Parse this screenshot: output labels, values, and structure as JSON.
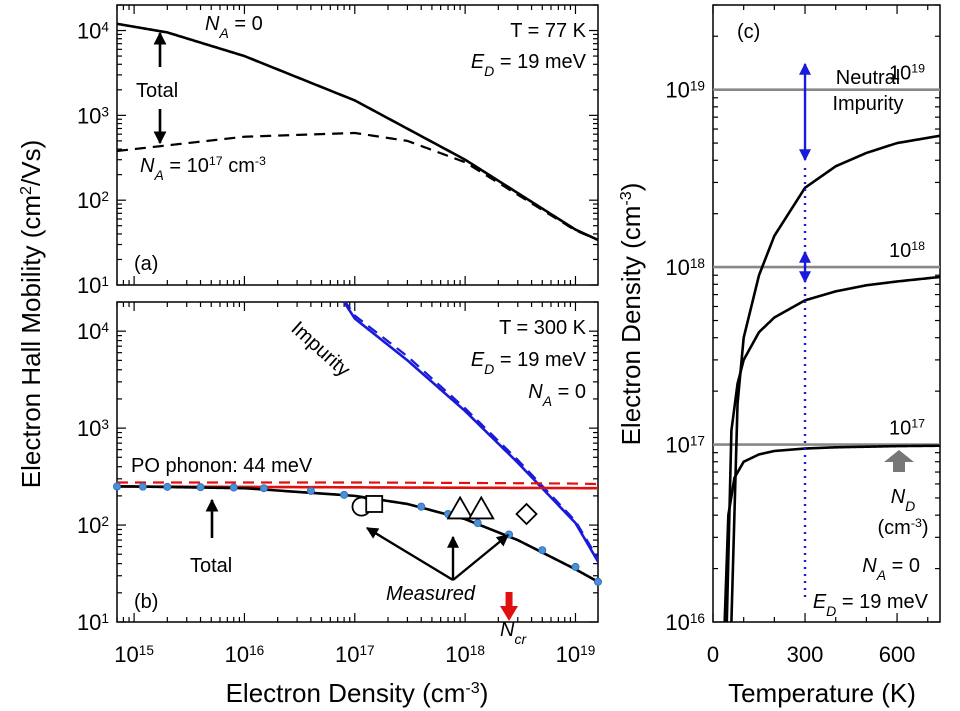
{
  "chart_data": [
    {
      "panel": "(a)",
      "type": "line",
      "title": "",
      "xlabel": "Electron Density (cm-3)",
      "ylabel": "Electron Hall Mobility (cm2/Vs)",
      "xscale": "log",
      "yscale": "log",
      "xlim": [
        700000000000000.0,
        1.6e+19
      ],
      "ylim": [
        10,
        20000
      ],
      "ytick_labels": [
        {
          "base": "10",
          "exp": "1",
          "value": 10
        },
        {
          "base": "10",
          "exp": "2",
          "value": 100
        },
        {
          "base": "10",
          "exp": "3",
          "value": 1000
        },
        {
          "base": "10",
          "exp": "4",
          "value": 10000
        }
      ],
      "annotations": {
        "temp": "T = 77 K",
        "ed_pre": "E",
        "ed_sub": "D",
        "ed_post": " = 19 meV",
        "panel": "(a)",
        "total": "Total"
      },
      "series": [
        {
          "name": "N_A = 0",
          "label_pre": "N",
          "label_sub": "A",
          "label_post": " = 0",
          "style": "solid",
          "color": "#000000",
          "x": [
            700000000000000.0,
            2000000000000000.0,
            1e+16,
            1e+17,
            1e+18,
            1e+19,
            1.6e+19
          ],
          "y": [
            12000,
            9500,
            5000,
            1500,
            300,
            45,
            34
          ]
        },
        {
          "name": "N_A = 10^17 cm^-3",
          "label_pre": "N",
          "label_sub": "A",
          "label_mid": " = 10",
          "label_sup": "17",
          "label_post": " cm",
          "label_sup2": "-3",
          "style": "dashed",
          "color": "#000000",
          "x": [
            700000000000000.0,
            1000000000000000.0,
            1e+16,
            1e+17,
            3e+17,
            1e+18,
            1e+19,
            1.6e+19
          ],
          "y": [
            380,
            400,
            560,
            620,
            500,
            280,
            44,
            34
          ]
        }
      ]
    },
    {
      "panel": "(b)",
      "type": "line",
      "title": "",
      "xlabel": "Electron Density (cm-3)",
      "ylabel": "Electron Hall Mobility (cm2/Vs)",
      "xscale": "log",
      "yscale": "log",
      "xlim": [
        700000000000000.0,
        1.6e+19
      ],
      "ylim": [
        10,
        20000
      ],
      "xtick_labels": [
        {
          "base": "10",
          "exp": "15",
          "value": 1000000000000000.0
        },
        {
          "base": "10",
          "exp": "16",
          "value": 1e+16
        },
        {
          "base": "10",
          "exp": "17",
          "value": 1e+17
        },
        {
          "base": "10",
          "exp": "18",
          "value": 1e+18
        },
        {
          "base": "10",
          "exp": "19",
          "value": 1e+19
        }
      ],
      "ytick_labels": [
        {
          "base": "10",
          "exp": "1",
          "value": 10
        },
        {
          "base": "10",
          "exp": "2",
          "value": 100
        },
        {
          "base": "10",
          "exp": "3",
          "value": 1000
        },
        {
          "base": "10",
          "exp": "4",
          "value": 10000
        }
      ],
      "annotations": {
        "temp": "T = 300 K",
        "ed_pre": "E",
        "ed_sub": "D",
        "ed_post": " = 19 meV",
        "na_pre": "N",
        "na_sub": "A",
        "na_post": " = 0",
        "panel": "(b)",
        "total": "Total",
        "measured": "Measured",
        "ncr_pre": "N",
        "ncr_sub": "cr",
        "ncr_x": 2.5e+18
      },
      "series": [
        {
          "name": "Impurity",
          "style": "solid",
          "color": "#1a1adb",
          "x": [
            8e+16,
            1e+17,
            3e+17,
            1e+18,
            3e+18,
            1e+19,
            1.6e+19
          ],
          "y": [
            20000,
            13500,
            5000,
            1500,
            440,
            105,
            42
          ]
        },
        {
          "name": "Impurity (dashed)",
          "style": "dashed",
          "color": "#1a1adb",
          "x": [
            8e+16,
            1e+17,
            3e+17,
            1e+18,
            3e+18,
            1e+19,
            1.6e+19
          ],
          "y": [
            21000,
            14500,
            5500,
            1600,
            470,
            110,
            45
          ]
        },
        {
          "name": "PO phonon: 44 meV",
          "style": "solid",
          "color": "#e01010",
          "x": [
            700000000000000.0,
            1.6e+19
          ],
          "y": [
            250,
            240
          ]
        },
        {
          "name": "PO phonon (dashed)",
          "style": "dashed",
          "color": "#e01010",
          "x": [
            700000000000000.0,
            1e+17,
            1e+18,
            1e+19,
            1.6e+19
          ],
          "y": [
            275,
            275,
            272,
            268,
            265
          ]
        },
        {
          "name": "Total",
          "style": "solid",
          "color": "#000000",
          "x": [
            700000000000000.0,
            1000000000000000.0,
            1e+16,
            1e+17,
            3e+17,
            1e+18,
            3e+18,
            1e+19,
            1.6e+19
          ],
          "y": [
            250,
            250,
            240,
            200,
            165,
            115,
            70,
            35,
            26
          ]
        }
      ],
      "points": {
        "name": "calculated",
        "color": "#4a90d9",
        "x": [
          700000000000000.0,
          1200000000000000.0,
          2000000000000000.0,
          4000000000000000.0,
          8000000000000000.0,
          1.5e+16,
          4e+16,
          8e+16,
          1.5e+17,
          4e+17,
          7e+17,
          1.3e+18,
          2.5e+18,
          5e+18,
          1e+19,
          1.6e+19
        ],
        "y": [
          250,
          249,
          248,
          246,
          244,
          240,
          225,
          205,
          185,
          155,
          130,
          105,
          80,
          55,
          37,
          26
        ]
      },
      "measured": [
        {
          "marker": "circle",
          "x": 1.15e+17,
          "y": 155
        },
        {
          "marker": "square",
          "x": 1.5e+17,
          "y": 165
        },
        {
          "marker": "triangle",
          "x": 9e+17,
          "y": 145
        },
        {
          "marker": "triangle",
          "x": 1.4e+18,
          "y": 145
        },
        {
          "marker": "diamond",
          "x": 3.6e+18,
          "y": 130
        }
      ]
    },
    {
      "panel": "(c)",
      "type": "line",
      "title": "",
      "xlabel": "Temperature (K)",
      "ylabel": "Electron Density (cm-3)",
      "yscale": "log",
      "xlim": [
        0,
        740
      ],
      "ylim": [
        1e+16,
        3e+19
      ],
      "xtick_labels": [
        "0",
        "300",
        "600"
      ],
      "xtick_values": [
        0,
        300,
        600
      ],
      "ytick_labels": [
        {
          "base": "10",
          "exp": "16",
          "value": 1e+16
        },
        {
          "base": "10",
          "exp": "17",
          "value": 1e+17
        },
        {
          "base": "10",
          "exp": "18",
          "value": 1e+18
        },
        {
          "base": "10",
          "exp": "19",
          "value": 1e+19
        }
      ],
      "nd_levels": [
        {
          "base": "10",
          "exp": "19",
          "value": 1e+19
        },
        {
          "base": "10",
          "exp": "18",
          "value": 1e+18
        },
        {
          "base": "10",
          "exp": "17",
          "value": 1e+17
        }
      ],
      "annotations": {
        "panel": "(c)",
        "neutral1": "Neutral",
        "neutral2": "Impurity",
        "nd_pre": "N",
        "nd_sub": "D",
        "nd_unit": "(cm",
        "nd_unit_sup": "-3",
        "nd_unit_post": ")",
        "na_pre": "N",
        "na_sub": "A",
        "na_post": " = 0",
        "ed_pre": "E",
        "ed_sub": "D",
        "ed_post": " = 19 meV",
        "vline_x": 300
      },
      "series": [
        {
          "name": "N_D = 1e19",
          "style": "solid",
          "color": "#000000",
          "x": [
            60,
            80,
            100,
            150,
            200,
            300,
            400,
            500,
            600,
            740
          ],
          "y": [
            1e+16,
            1.7e+17,
            4e+17,
            9e+17,
            1.5e+18,
            2.8e+18,
            3.7e+18,
            4.4e+18,
            5e+18,
            5.5e+18
          ]
        },
        {
          "name": "N_D = 1e18",
          "style": "solid",
          "color": "#000000",
          "x": [
            45,
            60,
            80,
            100,
            150,
            200,
            300,
            400,
            500,
            600,
            740
          ],
          "y": [
            1e+16,
            1.2e+17,
            2.2e+17,
            3e+17,
            4.3e+17,
            5.2e+17,
            6.5e+17,
            7.3e+17,
            7.9e+17,
            8.3e+17,
            8.8e+17
          ]
        },
        {
          "name": "N_D = 1e17",
          "style": "solid",
          "color": "#000000",
          "x": [
            38,
            50,
            70,
            100,
            150,
            200,
            300,
            400,
            600,
            740
          ],
          "y": [
            1e+16,
            4e+16,
            6.5e+16,
            8e+16,
            8.8e+16,
            9.2e+16,
            9.5e+16,
            9.65e+16,
            9.8e+16,
            9.85e+16
          ]
        }
      ]
    }
  ]
}
